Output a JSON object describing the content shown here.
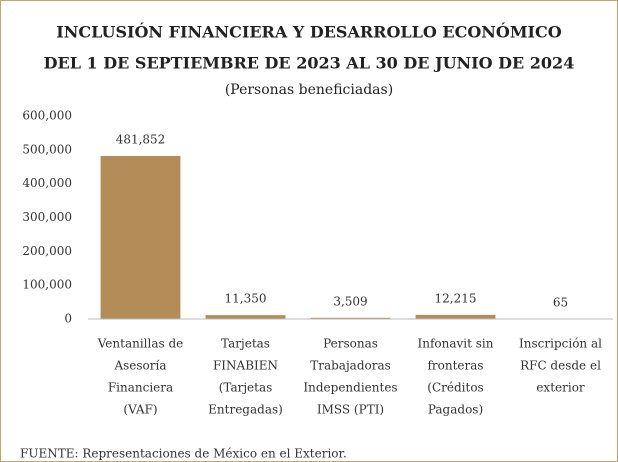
{
  "chart_data": {
    "type": "bar",
    "title": [
      "INCLUSIÓN FINANCIERA Y DESARROLLO ECONÓMICO",
      "DEL 1 DE SEPTIEMBRE DE 2023 AL 30 DE JUNIO DE 2024"
    ],
    "subtitle": "(Personas beneficiadas)",
    "categories": [
      [
        "Ventanillas de",
        "Asesoría",
        "Financiera",
        "(VAF)"
      ],
      [
        "Tarjetas",
        "FINABIEN",
        "(Tarjetas",
        "Entregadas)"
      ],
      [
        "Personas",
        "Trabajadoras",
        "Independientes",
        "IMSS (PTI)"
      ],
      [
        "Infonavit sin",
        "fronteras",
        "(Créditos",
        "Pagados)"
      ],
      [
        "Inscripción al",
        "RFC desde el",
        "exterior"
      ]
    ],
    "values": [
      481852,
      11350,
      3509,
      12215,
      65
    ],
    "value_labels": [
      "481,852",
      "11,350",
      "3,509",
      "12,215",
      "65"
    ],
    "color": "#b48c58",
    "ylim": [
      0,
      600000
    ],
    "yticks": [
      0,
      {
        "value": 100000,
        "label": "100,000"
      },
      {
        "value": 200000,
        "label": "200,000"
      },
      {
        "value": 300000,
        "label": "300,000"
      },
      {
        "value": 400000,
        "label": "400,000"
      },
      {
        "value": 500000,
        "label": "500,000"
      },
      {
        "value": 600000,
        "label": "600,000"
      }
    ],
    "grid": false,
    "source": "FUENTE: Representaciones de México en el Exterior."
  }
}
